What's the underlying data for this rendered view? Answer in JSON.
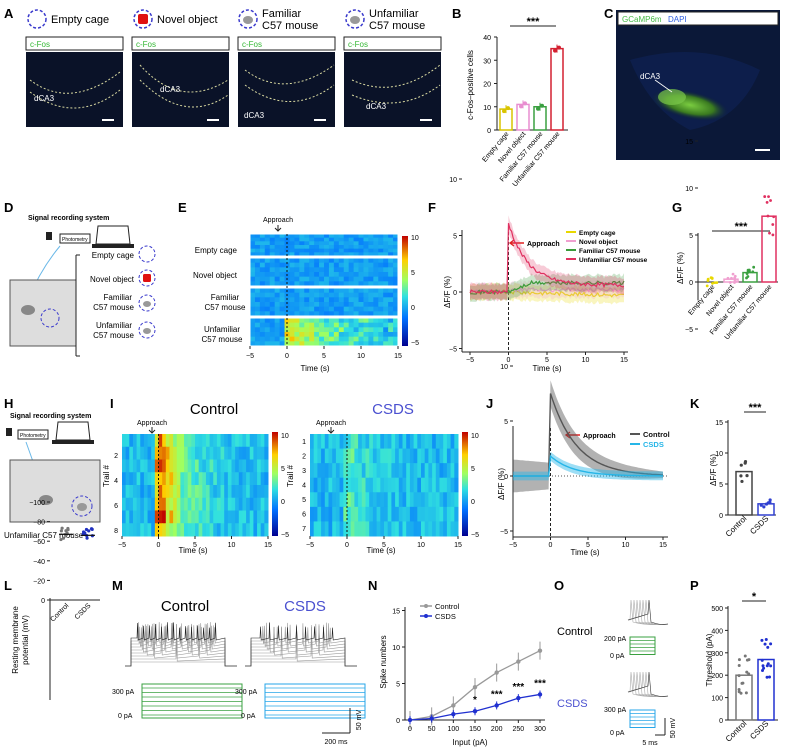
{
  "panels": {
    "A": "A",
    "B": "B",
    "C": "C",
    "D": "D",
    "E": "E",
    "F": "F",
    "G": "G",
    "H": "H",
    "I": "I",
    "J": "J",
    "K": "K",
    "L": "L",
    "M": "M",
    "N": "N",
    "O": "O",
    "P": "P"
  },
  "A": {
    "headers": [
      "Empty cage",
      "Novel object",
      "Familiar\nC57 mouse",
      "Unfamiliar\nC57 mouse"
    ],
    "stain": "c-Fos",
    "region": "dCA3"
  },
  "B": {
    "ylabel": "c-Fos–positive cells",
    "yticks": [
      "0",
      "10",
      "20",
      "30",
      "40"
    ],
    "categories": [
      "Empty cage",
      "Novel object",
      "Familiar C57 mouse",
      "Unfamiliar C57 mouse"
    ],
    "values": [
      9,
      11,
      10,
      35
    ],
    "colors": [
      "#d9c400",
      "#e88ed0",
      "#3aa040",
      "#d42030"
    ],
    "sig": "***"
  },
  "C": {
    "gcamp": "GCaMP6m",
    "dapi": "DAPI",
    "region": "dCA3"
  },
  "D": {
    "system": "Signal recording system",
    "photometry": "Photometry",
    "items": [
      "Empty cage",
      "Novel object",
      "Familiar\nC57 mouse",
      "Unfamiliar\nC57 mouse"
    ]
  },
  "E": {
    "approach": "Approach",
    "rows": [
      "Empty cage",
      "Novel object",
      "Familiar\nC57 mouse",
      "Unfamiliar\nC57 mouse"
    ],
    "xticks": [
      "−5",
      "0",
      "5",
      "10",
      "15"
    ],
    "xlabel": "Time (s)",
    "cbar": [
      "10",
      "5",
      "0",
      "−5"
    ]
  },
  "F": {
    "approach": "Approach",
    "ylabel": "ΔF/F (%)",
    "yticks": [
      "10",
      "5",
      "0",
      "−5"
    ],
    "xticks": [
      "−5",
      "0",
      "5",
      "10",
      "15"
    ],
    "xlabel": "Time (s)",
    "legend": [
      "Empty cage",
      "Novel object",
      "Familiar C57 mouse",
      "Unfamiliar C57 mouse"
    ],
    "colors": [
      "#e8d800",
      "#f0a0d0",
      "#3a9a3a",
      "#e03060"
    ]
  },
  "G": {
    "ylabel": "ΔF/F (%)",
    "yticks": [
      "15",
      "10",
      "5",
      "0",
      "−5"
    ],
    "categories": [
      "Empty cage",
      "Novel object",
      "Familiar C57 mouse",
      "Unfamiliar C57 mouse"
    ],
    "values": [
      0,
      0.3,
      1,
      7
    ],
    "sig": "***"
  },
  "H": {
    "system": "Signal recording system",
    "photometry": "Photometry",
    "caption": "Unfamiliar C57 mouse"
  },
  "I": {
    "control_title": "Control",
    "csds_title": "CSDS",
    "approach": "Approach",
    "ylabel": "Trail #",
    "control_rows": [
      "2",
      "4",
      "6",
      "8"
    ],
    "csds_rows": [
      "1",
      "2",
      "3",
      "4",
      "5",
      "6",
      "7"
    ],
    "xticks": [
      "−5",
      "0",
      "5",
      "10",
      "15"
    ],
    "xlabel": "Time (s)",
    "cbar": [
      "10",
      "5",
      "0",
      "−5"
    ]
  },
  "J": {
    "approach": "Approach",
    "ylabel": "ΔF/F (%)",
    "yticks": [
      "10",
      "5",
      "0",
      "−5"
    ],
    "xticks": [
      "−5",
      "0",
      "5",
      "10",
      "15"
    ],
    "xlabel": "Time (s)",
    "legend": [
      "Control",
      "CSDS"
    ]
  },
  "K": {
    "ylabel": "ΔF/F (%)",
    "yticks": [
      "15",
      "10",
      "5",
      "0"
    ],
    "categories": [
      "Control",
      "CSDS"
    ],
    "values": [
      7,
      1.8
    ],
    "sig": "***"
  },
  "L": {
    "ylabel": "Resting membrane potential (mV)",
    "yticks": [
      "0",
      "−20",
      "−40",
      "−60",
      "−80",
      "−100"
    ],
    "categories": [
      "Control",
      "CSDS"
    ],
    "values": [
      -67,
      -66
    ]
  },
  "M": {
    "control": "Control",
    "csds": "CSDS",
    "current_hi": "300 pA",
    "current_lo": "0 pA",
    "scale_v": "50 mV",
    "scale_t": "200 ms"
  },
  "N": {
    "ylabel": "Spike numbers",
    "xlabel": "Input (pA)",
    "yticks": [
      "0",
      "5",
      "10",
      "15"
    ],
    "xticks": [
      "0",
      "50",
      "100",
      "150",
      "200",
      "250",
      "300"
    ],
    "legend": [
      "Control",
      "CSDS"
    ],
    "sig": [
      "*",
      "***",
      "***",
      "***"
    ],
    "control": [
      0,
      0.5,
      2,
      4.5,
      6.5,
      8,
      9.5
    ],
    "csds": [
      0,
      0.2,
      0.8,
      1.2,
      2,
      3,
      3.5
    ]
  },
  "O": {
    "control": "Control",
    "csds": "CSDS",
    "hi": "200 pA",
    "lo": "0 pA",
    "hi2": "300 pA",
    "lo2": "0 pA",
    "scale_v": "50 mV",
    "scale_t": "5 ms"
  },
  "P": {
    "ylabel": "Threshold (pA)",
    "yticks": [
      "0",
      "100",
      "200",
      "300",
      "400",
      "500"
    ],
    "categories": [
      "Control",
      "CSDS"
    ],
    "values": [
      200,
      270
    ],
    "sig": "*"
  }
}
